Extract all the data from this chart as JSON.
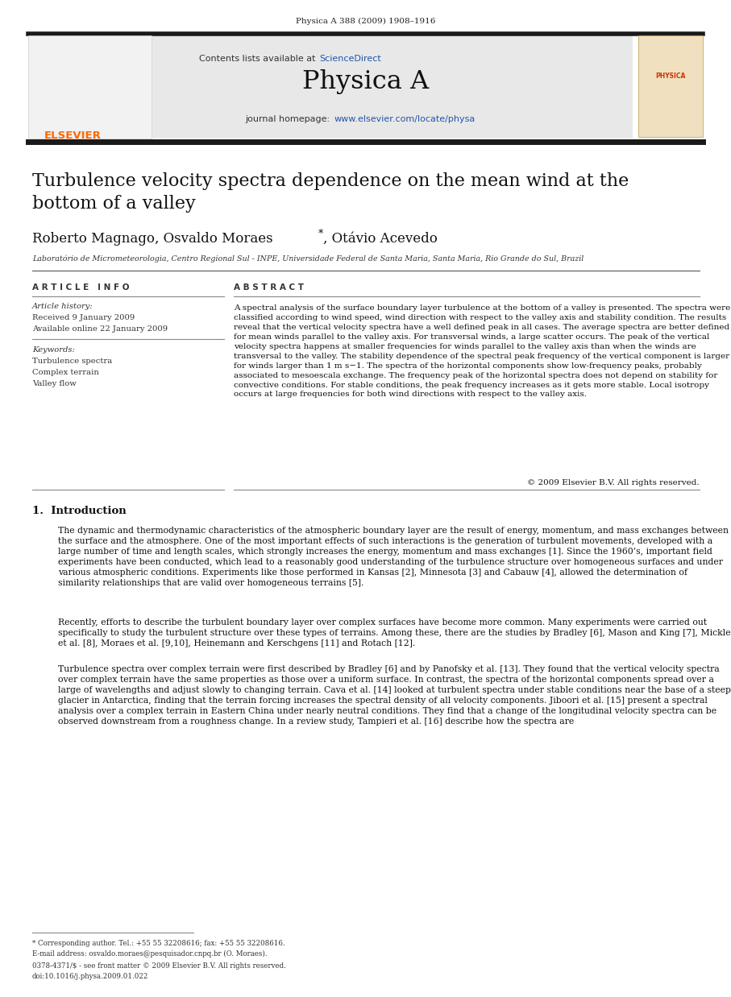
{
  "page_width": 9.07,
  "page_height": 12.38,
  "background_color": "#ffffff",
  "top_journal_ref": "Physica A 388 (2009) 1908–1916",
  "header_bg": "#e8e8e8",
  "sciencedirect_color": "#2255aa",
  "header_journal": "Physica A",
  "header_url_color": "#2255aa",
  "title": "Turbulence velocity spectra dependence on the mean wind at the\nbottom of a valley",
  "affiliation": "Laboratório de Micrometeorologia, Centro Regional Sul - INPE, Universidade Federal de Santa Maria, Santa Maria, Rio Grande do Sul, Brazil",
  "article_info_header": "A R T I C L E   I N F O",
  "abstract_header": "A B S T R A C T",
  "article_history_label": "Article history:",
  "received": "Received 9 January 2009",
  "available": "Available online 22 January 2009",
  "keywords_label": "Keywords:",
  "keyword1": "Turbulence spectra",
  "keyword2": "Complex terrain",
  "keyword3": "Valley flow",
  "abstract_text": "A spectral analysis of the surface boundary layer turbulence at the bottom of a valley is presented. The spectra were classified according to wind speed, wind direction with respect to the valley axis and stability condition. The results reveal that the vertical velocity spectra have a well defined peak in all cases. The average spectra are better defined for mean winds parallel to the valley axis. For transversal winds, a large scatter occurs. The peak of the vertical velocity spectra happens at smaller frequencies for winds parallel to the valley axis than when the winds are transversal to the valley. The stability dependence of the spectral peak frequency of the vertical component is larger for winds larger than 1 m s−1. The spectra of the horizontal components show low-frequency peaks, probably associated to mesoescala exchange. The frequency peak of the horizontal spectra does not depend on stability for convective conditions. For stable conditions, the peak frequency increases as it gets more stable. Local isotropy occurs at large frequencies for both wind directions with respect to the valley axis.",
  "copyright": "© 2009 Elsevier B.V. All rights reserved.",
  "section1_title": "1.  Introduction",
  "para1": "The dynamic and thermodynamic characteristics of the atmospheric boundary layer are the result of energy, momentum, and mass exchanges between the surface and the atmosphere. One of the most important effects of such interactions is the generation of turbulent movements, developed with a large number of time and length scales, which strongly increases the energy, momentum and mass exchanges [1]. Since the 1960’s, important field experiments have been conducted, which lead to a reasonably good understanding of the turbulence structure over homogeneous surfaces and under various atmospheric conditions. Experiments like those performed in Kansas [2], Minnesota [3] and Cabauw [4], allowed the determination of similarity relationships that are valid over homogeneous terrains [5].",
  "para2": "Recently, efforts to describe the turbulent boundary layer over complex surfaces have become more common. Many experiments were carried out specifically to study the turbulent structure over these types of terrains. Among these, there are the studies by Bradley [6], Mason and King [7], Mickle et al. [8], Moraes et al. [9,10], Heinemann and Kerschgens [11] and Rotach [12].",
  "para3": "Turbulence spectra over complex terrain were first described by Bradley [6] and by Panofsky et al. [13]. They found that the vertical velocity spectra over complex terrain have the same properties as those over a uniform surface. In contrast, the spectra of the horizontal components spread over a large of wavelengths and adjust slowly to changing terrain. Cava et al. [14] looked at turbulent spectra under stable conditions near the base of a steep glacier in Antarctica, finding that the terrain forcing increases the spectral density of all velocity components. Jiboori et al. [15] present a spectral analysis over a complex terrain in Eastern China under nearly neutral conditions. They find that a change of the longitudinal velocity spectra can be observed downstream from a roughness change. In a review study, Tampieri et al. [16] describe how the spectra are",
  "footnote_star": "* Corresponding author. Tel.: +55 55 32208616; fax: +55 55 32208616.",
  "footnote_email": "E-mail address: osvaldo.moraes@pesquisador.cnpq.br (O. Moraes).",
  "footnote_issn": "0378-4371/$ - see front matter © 2009 Elsevier B.V. All rights reserved.",
  "footnote_doi": "doi:10.1016/j.physa.2009.01.022",
  "top_bar_color": "#1a1a1a",
  "elsevier_orange": "#ff6600"
}
